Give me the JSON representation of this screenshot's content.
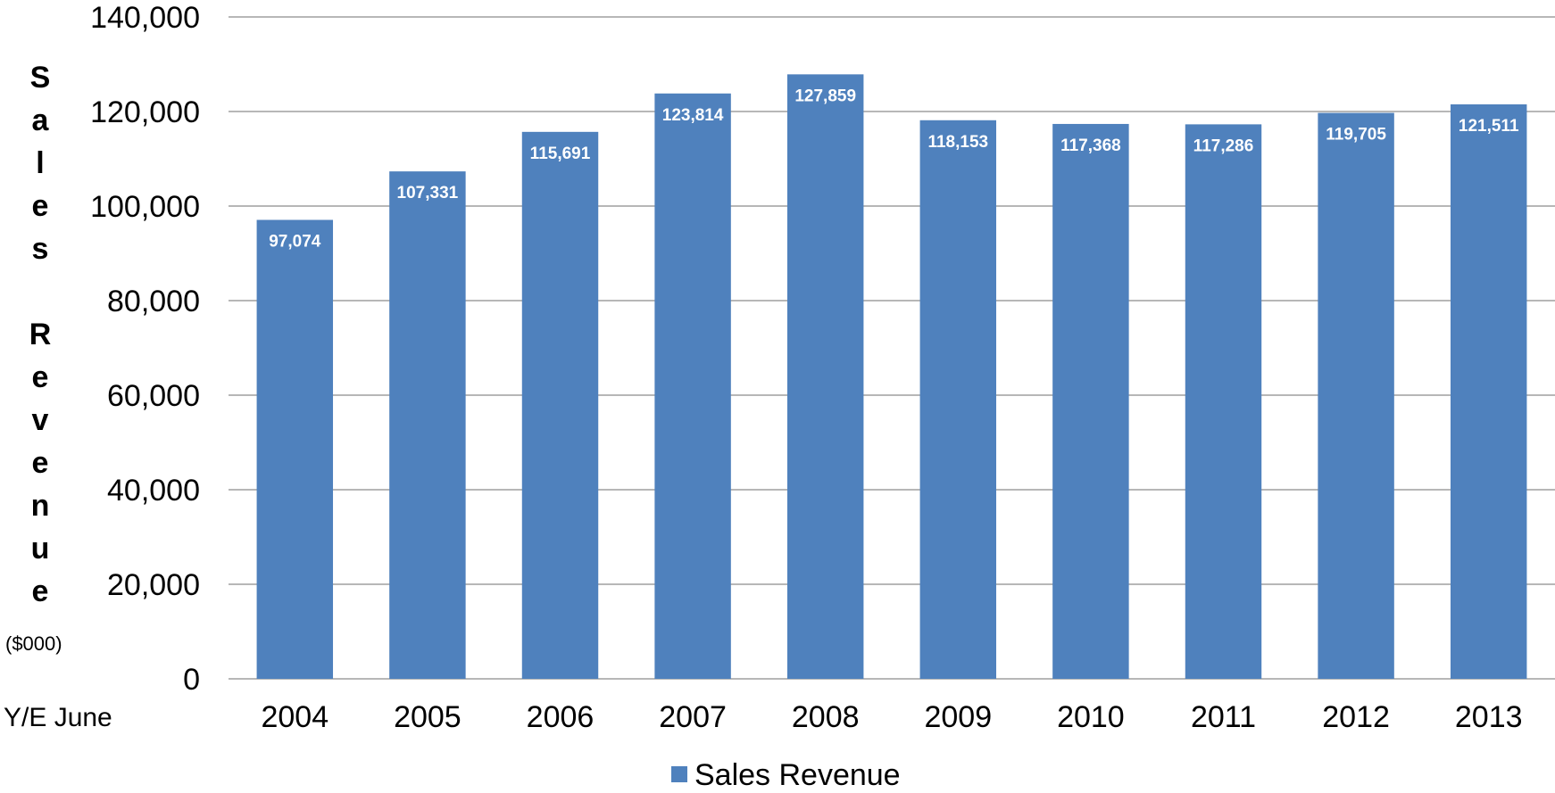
{
  "chart_data": {
    "type": "bar",
    "categories": [
      "2004",
      "2005",
      "2006",
      "2007",
      "2008",
      "2009",
      "2010",
      "2011",
      "2012",
      "2013"
    ],
    "series": [
      {
        "name": "Sales Revenue",
        "values": [
          97074,
          107331,
          115691,
          123814,
          127859,
          118153,
          117368,
          117286,
          119705,
          121511
        ],
        "value_labels": [
          "97,074",
          "107,331",
          "115,691",
          "123,814",
          "127,859",
          "118,153",
          "117,368",
          "117,286",
          "119,705",
          "121,511"
        ],
        "color": "#4f81bd"
      }
    ],
    "ylabel": "Sales Revenue",
    "ylabel_unit": "($000)",
    "xlabel": "Y/E June",
    "ylim": [
      0,
      140000
    ],
    "yticks": [
      0,
      20000,
      40000,
      60000,
      80000,
      100000,
      120000,
      140000
    ],
    "ytick_labels": [
      "0",
      "20,000",
      "40,000",
      "60,000",
      "80,000",
      "100,000",
      "120,000",
      "140,000"
    ],
    "grid": true,
    "legend": "bottom"
  }
}
